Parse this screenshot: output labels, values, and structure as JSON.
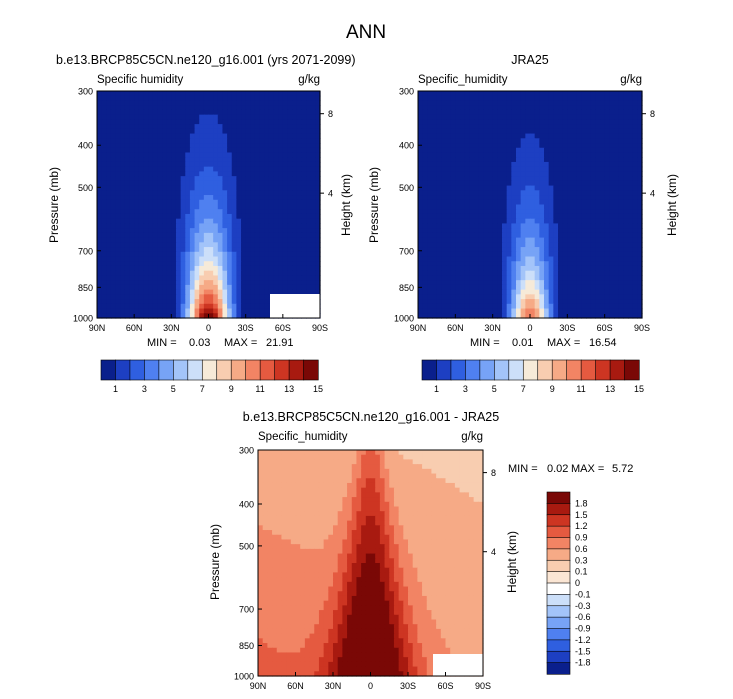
{
  "figure": {
    "title": "ANN"
  },
  "chart_data": [
    {
      "type": "heatmap",
      "title": "b.e13.BRCP85C5CN.ne120_g16.001 (yrs 2071-2099)",
      "subtitle_left": "Specific humidity",
      "subtitle_right": "g/kg",
      "ylabel": "Pressure (mb)",
      "ylabel_right": "Height (km)",
      "x_ticks": [
        "90N",
        "60N",
        "30N",
        "0",
        "30S",
        "60S",
        "90S"
      ],
      "y_ticks": [
        "300",
        "400",
        "500",
        "700",
        "850",
        "1000"
      ],
      "y_ticks_right": [
        "8",
        "4"
      ],
      "min_label": "MIN =",
      "min_value": "0.03",
      "max_label": "MAX =",
      "max_value": "21.91",
      "peak": 21.9,
      "colorbar_levels": [
        "1",
        "3",
        "5",
        "7",
        "9",
        "11",
        "13",
        "15"
      ],
      "colorbar_colors": [
        "#0a1f8c",
        "#1d3fc2",
        "#2f5fe0",
        "#4f80f0",
        "#77a3f6",
        "#a3c4f9",
        "#ccdff9",
        "#f6ead8",
        "#f8cdb0",
        "#f6aa86",
        "#f28464",
        "#e55a40",
        "#cd3522",
        "#a81a10",
        "#7a0806"
      ]
    },
    {
      "type": "heatmap",
      "title": "JRA25",
      "subtitle_left": "Specific_humidity",
      "subtitle_right": "g/kg",
      "ylabel": "Pressure (mb)",
      "ylabel_right": "Height (km)",
      "x_ticks": [
        "90N",
        "60N",
        "30N",
        "0",
        "30S",
        "60S",
        "90S"
      ],
      "y_ticks": [
        "300",
        "400",
        "500",
        "700",
        "850",
        "1000"
      ],
      "y_ticks_right": [
        "8",
        "4"
      ],
      "min_label": "MIN =",
      "min_value": "0.01",
      "max_label": "MAX =",
      "max_value": "16.54",
      "peak": 16.5,
      "colorbar_levels": [
        "1",
        "3",
        "5",
        "7",
        "9",
        "11",
        "13",
        "15"
      ],
      "colorbar_colors": [
        "#0a1f8c",
        "#1d3fc2",
        "#2f5fe0",
        "#4f80f0",
        "#77a3f6",
        "#a3c4f9",
        "#ccdff9",
        "#f6ead8",
        "#f8cdb0",
        "#f6aa86",
        "#f28464",
        "#e55a40",
        "#cd3522",
        "#a81a10",
        "#7a0806"
      ]
    },
    {
      "type": "heatmap",
      "title": "b.e13.BRCP85C5CN.ne120_g16.001 - JRA25",
      "subtitle_left": "Specific_humidity",
      "subtitle_right": "g/kg",
      "ylabel": "Pressure (mb)",
      "ylabel_right": "Height (km)",
      "x_ticks": [
        "90N",
        "60N",
        "30N",
        "0",
        "30S",
        "60S",
        "90S"
      ],
      "y_ticks": [
        "300",
        "400",
        "500",
        "700",
        "850",
        "1000"
      ],
      "y_ticks_right": [
        "8",
        "4"
      ],
      "min_label": "MIN =",
      "min_value": "0.02",
      "max_label": "MAX =",
      "max_value": "5.72",
      "colorbar_levels": [
        "1.8",
        "1.5",
        "1.2",
        "0.9",
        "0.6",
        "0.3",
        "0.1",
        "0",
        "-0.1",
        "-0.3",
        "-0.6",
        "-0.9",
        "-1.2",
        "-1.5",
        "-1.8"
      ],
      "colorbar_colors": [
        "#7a0806",
        "#a81a10",
        "#cd3522",
        "#e55a40",
        "#f28464",
        "#f6aa86",
        "#f8cdb0",
        "#fbe6d4",
        "#ffffff",
        "#ccdff9",
        "#a3c4f9",
        "#77a3f6",
        "#4f80f0",
        "#2f5fe0",
        "#1d3fc2",
        "#0a1f8c"
      ]
    }
  ]
}
